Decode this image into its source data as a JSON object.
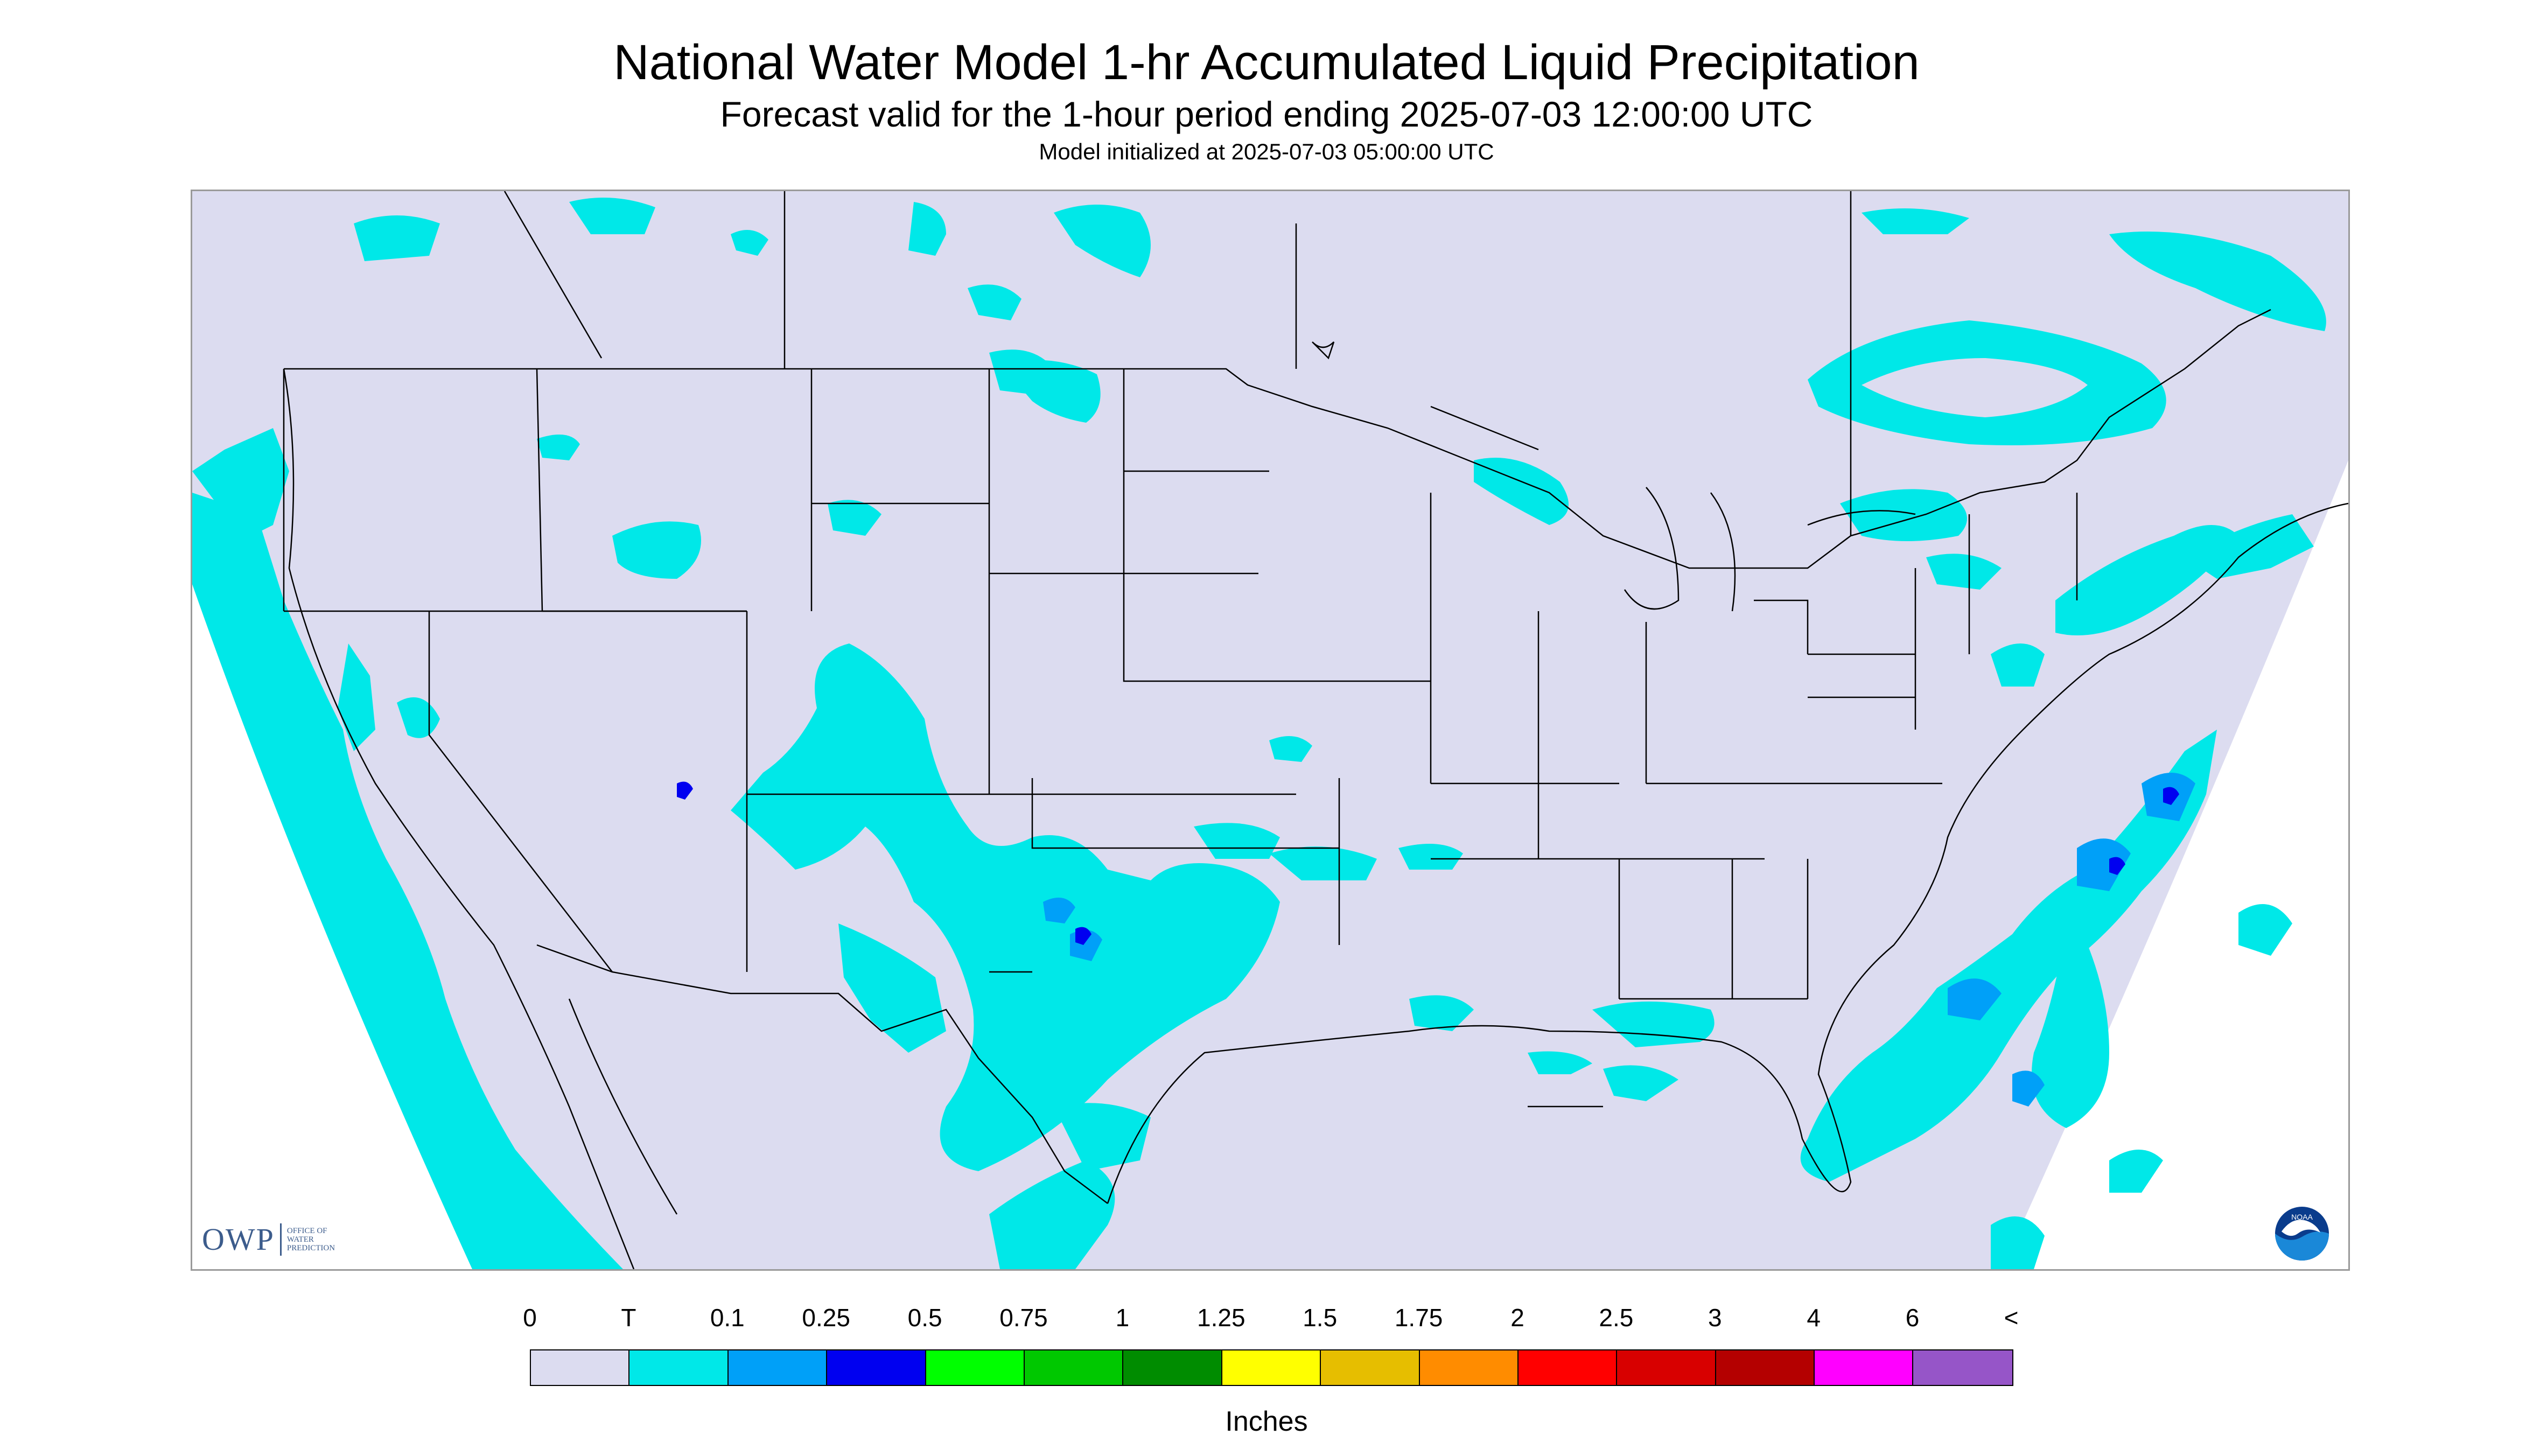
{
  "title": "National Water Model 1-hr Accumulated Liquid Precipitation",
  "subtitle": "Forecast valid for the 1-hour period ending 2025-07-03 12:00:00 UTC",
  "init_line": "Model initialized at 2025-07-03 05:00:00 UTC",
  "logos": {
    "owp_text": "OWP",
    "owp_sub": [
      "OFFICE OF",
      "WATER",
      "PREDICTION"
    ],
    "noaa_text": "NOAA"
  },
  "legend": {
    "units": "Inches",
    "tick_labels": [
      "0",
      "T",
      "0.1",
      "0.25",
      "0.5",
      "0.75",
      "1",
      "1.25",
      "1.5",
      "1.75",
      "2",
      "2.5",
      "3",
      "4",
      "6",
      "<"
    ],
    "colors": [
      "#dcdcf0",
      "#00e8e8",
      "#00a0f8",
      "#0000f0",
      "#00ff00",
      "#00c800",
      "#008c00",
      "#ffff00",
      "#e6be00",
      "#ff8c00",
      "#ff0000",
      "#d80000",
      "#b40000",
      "#ff00ff",
      "#9655c8"
    ]
  },
  "map": {
    "background_color": "#dcdcf0",
    "outside_color": "#ffffff",
    "boundary_color": "#000000",
    "precip_color_trace": "#00e8e8",
    "precip_color_light": "#00a0f8",
    "precip_color_heavy": "#0000f0"
  }
}
